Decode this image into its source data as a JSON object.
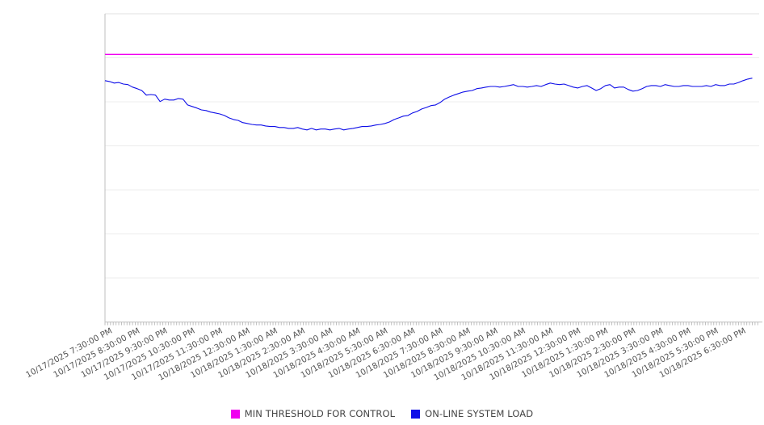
{
  "legend": {
    "items": [
      {
        "label": "MIN THRESHOLD FOR CONTROL",
        "color": "#f000f0"
      },
      {
        "label": "ON-LINE SYSTEM LOAD",
        "color": "#0f0fe8"
      }
    ]
  },
  "chart_data": {
    "type": "line",
    "title": "",
    "xlabel": "",
    "ylabel": "",
    "ylim": [
      0,
      100
    ],
    "y_tick_labels_visible": false,
    "grid": {
      "horizontal": true,
      "horizontal_intervals": 7,
      "vertical": false
    },
    "legend_position": "bottom",
    "x_axis": {
      "start": "10/17/2025 7:20:00 PM",
      "end": "10/18/2025 7:05:00 PM",
      "axis_total_minutes": 1425,
      "label_first_offset_minutes": 10,
      "label_interval_minutes": 60,
      "minor_tick_interval_minutes": 6
    },
    "x_tick_labels": [
      "10/17/2025 7:30:00 PM",
      "10/17/2025 8:30:00 PM",
      "10/17/2025 9:30:00 PM",
      "10/17/2025 10:30:00 PM",
      "10/17/2025 11:30:00 PM",
      "10/18/2025 12:30:00 AM",
      "10/18/2025 1:30:00 AM",
      "10/18/2025 2:30:00 AM",
      "10/18/2025 3:30:00 AM",
      "10/18/2025 4:30:00 AM",
      "10/18/2025 5:30:00 AM",
      "10/18/2025 6:30:00 AM",
      "10/18/2025 7:30:00 AM",
      "10/18/2025 8:30:00 AM",
      "10/18/2025 9:30:00 AM",
      "10/18/2025 10:30:00 AM",
      "10/18/2025 11:30:00 AM",
      "10/18/2025 12:30:00 PM",
      "10/18/2025 1:30:00 PM",
      "10/18/2025 2:30:00 PM",
      "10/18/2025 3:30:00 PM",
      "10/18/2025 4:30:00 PM",
      "10/18/2025 5:30:00 PM",
      "10/18/2025 6:30:00 PM"
    ],
    "series": [
      {
        "name": "MIN THRESHOLD FOR CONTROL",
        "color": "#f000f0",
        "style": "constant-threshold",
        "value": 86.8,
        "start_offset_minutes": 0,
        "end_offset_minutes": 1410
      },
      {
        "name": "ON-LINE SYSTEM LOAD",
        "color": "#0f0fe8",
        "style": "line",
        "start_offset_minutes": 0,
        "interval_minutes": 10,
        "values": [
          78.3,
          78.0,
          77.5,
          77.7,
          77.2,
          77.0,
          76.2,
          75.7,
          75.1,
          73.6,
          73.8,
          73.6,
          71.5,
          72.3,
          72.0,
          72.0,
          72.5,
          72.3,
          70.4,
          69.9,
          69.4,
          68.8,
          68.6,
          68.1,
          67.8,
          67.5,
          67.0,
          66.2,
          65.7,
          65.4,
          64.7,
          64.4,
          64.1,
          63.9,
          63.9,
          63.6,
          63.4,
          63.4,
          63.1,
          63.1,
          62.8,
          62.8,
          63.1,
          62.6,
          62.3,
          62.8,
          62.3,
          62.6,
          62.6,
          62.3,
          62.6,
          62.8,
          62.3,
          62.6,
          62.8,
          63.1,
          63.4,
          63.4,
          63.6,
          63.9,
          64.1,
          64.4,
          64.9,
          65.7,
          66.2,
          66.8,
          67.0,
          67.8,
          68.3,
          69.1,
          69.6,
          70.2,
          70.4,
          71.2,
          72.3,
          73.0,
          73.6,
          74.1,
          74.6,
          74.9,
          75.1,
          75.7,
          75.9,
          76.2,
          76.4,
          76.4,
          76.2,
          76.4,
          76.7,
          77.0,
          76.4,
          76.4,
          76.2,
          76.4,
          76.7,
          76.4,
          77.0,
          77.5,
          77.2,
          77.0,
          77.2,
          76.7,
          76.2,
          75.9,
          76.4,
          76.7,
          75.9,
          75.1,
          75.7,
          76.7,
          77.0,
          75.9,
          76.2,
          76.2,
          75.4,
          74.9,
          75.1,
          75.7,
          76.4,
          76.7,
          76.7,
          76.4,
          77.0,
          76.7,
          76.4,
          76.4,
          76.7,
          76.7,
          76.4,
          76.4,
          76.4,
          76.7,
          76.4,
          77.0,
          76.7,
          76.7,
          77.2,
          77.2,
          77.7,
          78.3,
          78.8,
          79.1
        ]
      }
    ],
    "colors": {
      "axis": "#bfbfbf",
      "grid": "#ececec",
      "plot_top_border": "#e0e0e0",
      "label_text": "#555555"
    }
  }
}
